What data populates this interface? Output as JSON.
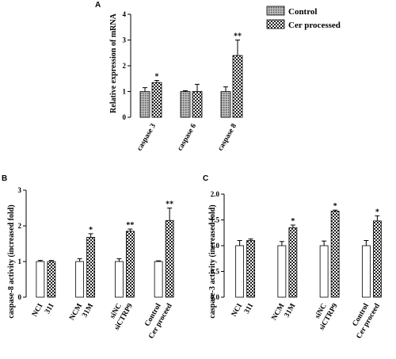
{
  "panel_letters": [
    "A",
    "B",
    "C"
  ],
  "chart_data": [
    {
      "type": "bar",
      "panel": "A",
      "ylabel": "Relative expression of mRNA",
      "ylim": [
        0,
        4
      ],
      "yticks": [
        "0",
        "1",
        "2",
        "3",
        "4"
      ],
      "categories": [
        "caspase 3",
        "caspase 6",
        "caspase 8"
      ],
      "series": [
        {
          "name": "Control",
          "values": [
            1.0,
            1.0,
            1.0
          ],
          "errors": [
            0.15,
            0.03,
            0.18
          ]
        },
        {
          "name": "Cer processed",
          "values": [
            1.35,
            1.0,
            2.4
          ],
          "errors": [
            0.08,
            0.28,
            0.6
          ]
        }
      ],
      "significance": [
        "*",
        "",
        "**"
      ],
      "legend": [
        "Control",
        "Cer processed"
      ],
      "legend_position": "top-right"
    },
    {
      "type": "bar",
      "panel": "B",
      "ylabel": "caspase-8 activity (increased fold)",
      "ylim": [
        0,
        3
      ],
      "yticks": [
        "0",
        "1",
        "2",
        "3"
      ],
      "categories": [
        "NCI",
        "31I",
        "NCM",
        "31M",
        "siNC",
        "siCTRP9",
        "Control",
        "Cer proceed"
      ],
      "bar_patterns": [
        "solid",
        "check",
        "solid",
        "check",
        "solid",
        "check",
        "solid",
        "check"
      ],
      "values": [
        1.0,
        1.0,
        1.0,
        1.68,
        1.0,
        1.85,
        1.0,
        2.15
      ],
      "errors": [
        0.03,
        0.03,
        0.08,
        0.1,
        0.08,
        0.06,
        0.02,
        0.35
      ],
      "significance": [
        "",
        "",
        "",
        "*",
        "",
        "**",
        "",
        "**"
      ]
    },
    {
      "type": "bar",
      "panel": "C",
      "ylabel": "caspase-3 activity (increased fold)",
      "ylim": [
        0,
        2.0
      ],
      "yticks": [
        "0.0",
        "0.5",
        "1.0",
        "1.5",
        "2.0"
      ],
      "categories": [
        "NCI",
        "31I",
        "NCM",
        "31M",
        "siNC",
        "siCTRP9",
        "Control",
        "Cer proceed"
      ],
      "bar_patterns": [
        "solid",
        "check",
        "solid",
        "check",
        "solid",
        "check",
        "solid",
        "check"
      ],
      "values": [
        1.0,
        1.1,
        1.0,
        1.35,
        1.0,
        1.67,
        1.0,
        1.48
      ],
      "errors": [
        0.1,
        0.03,
        0.08,
        0.05,
        0.09,
        0.02,
        0.1,
        0.1
      ],
      "significance": [
        "",
        "",
        "",
        "*",
        "",
        "*",
        "",
        "*"
      ]
    }
  ]
}
